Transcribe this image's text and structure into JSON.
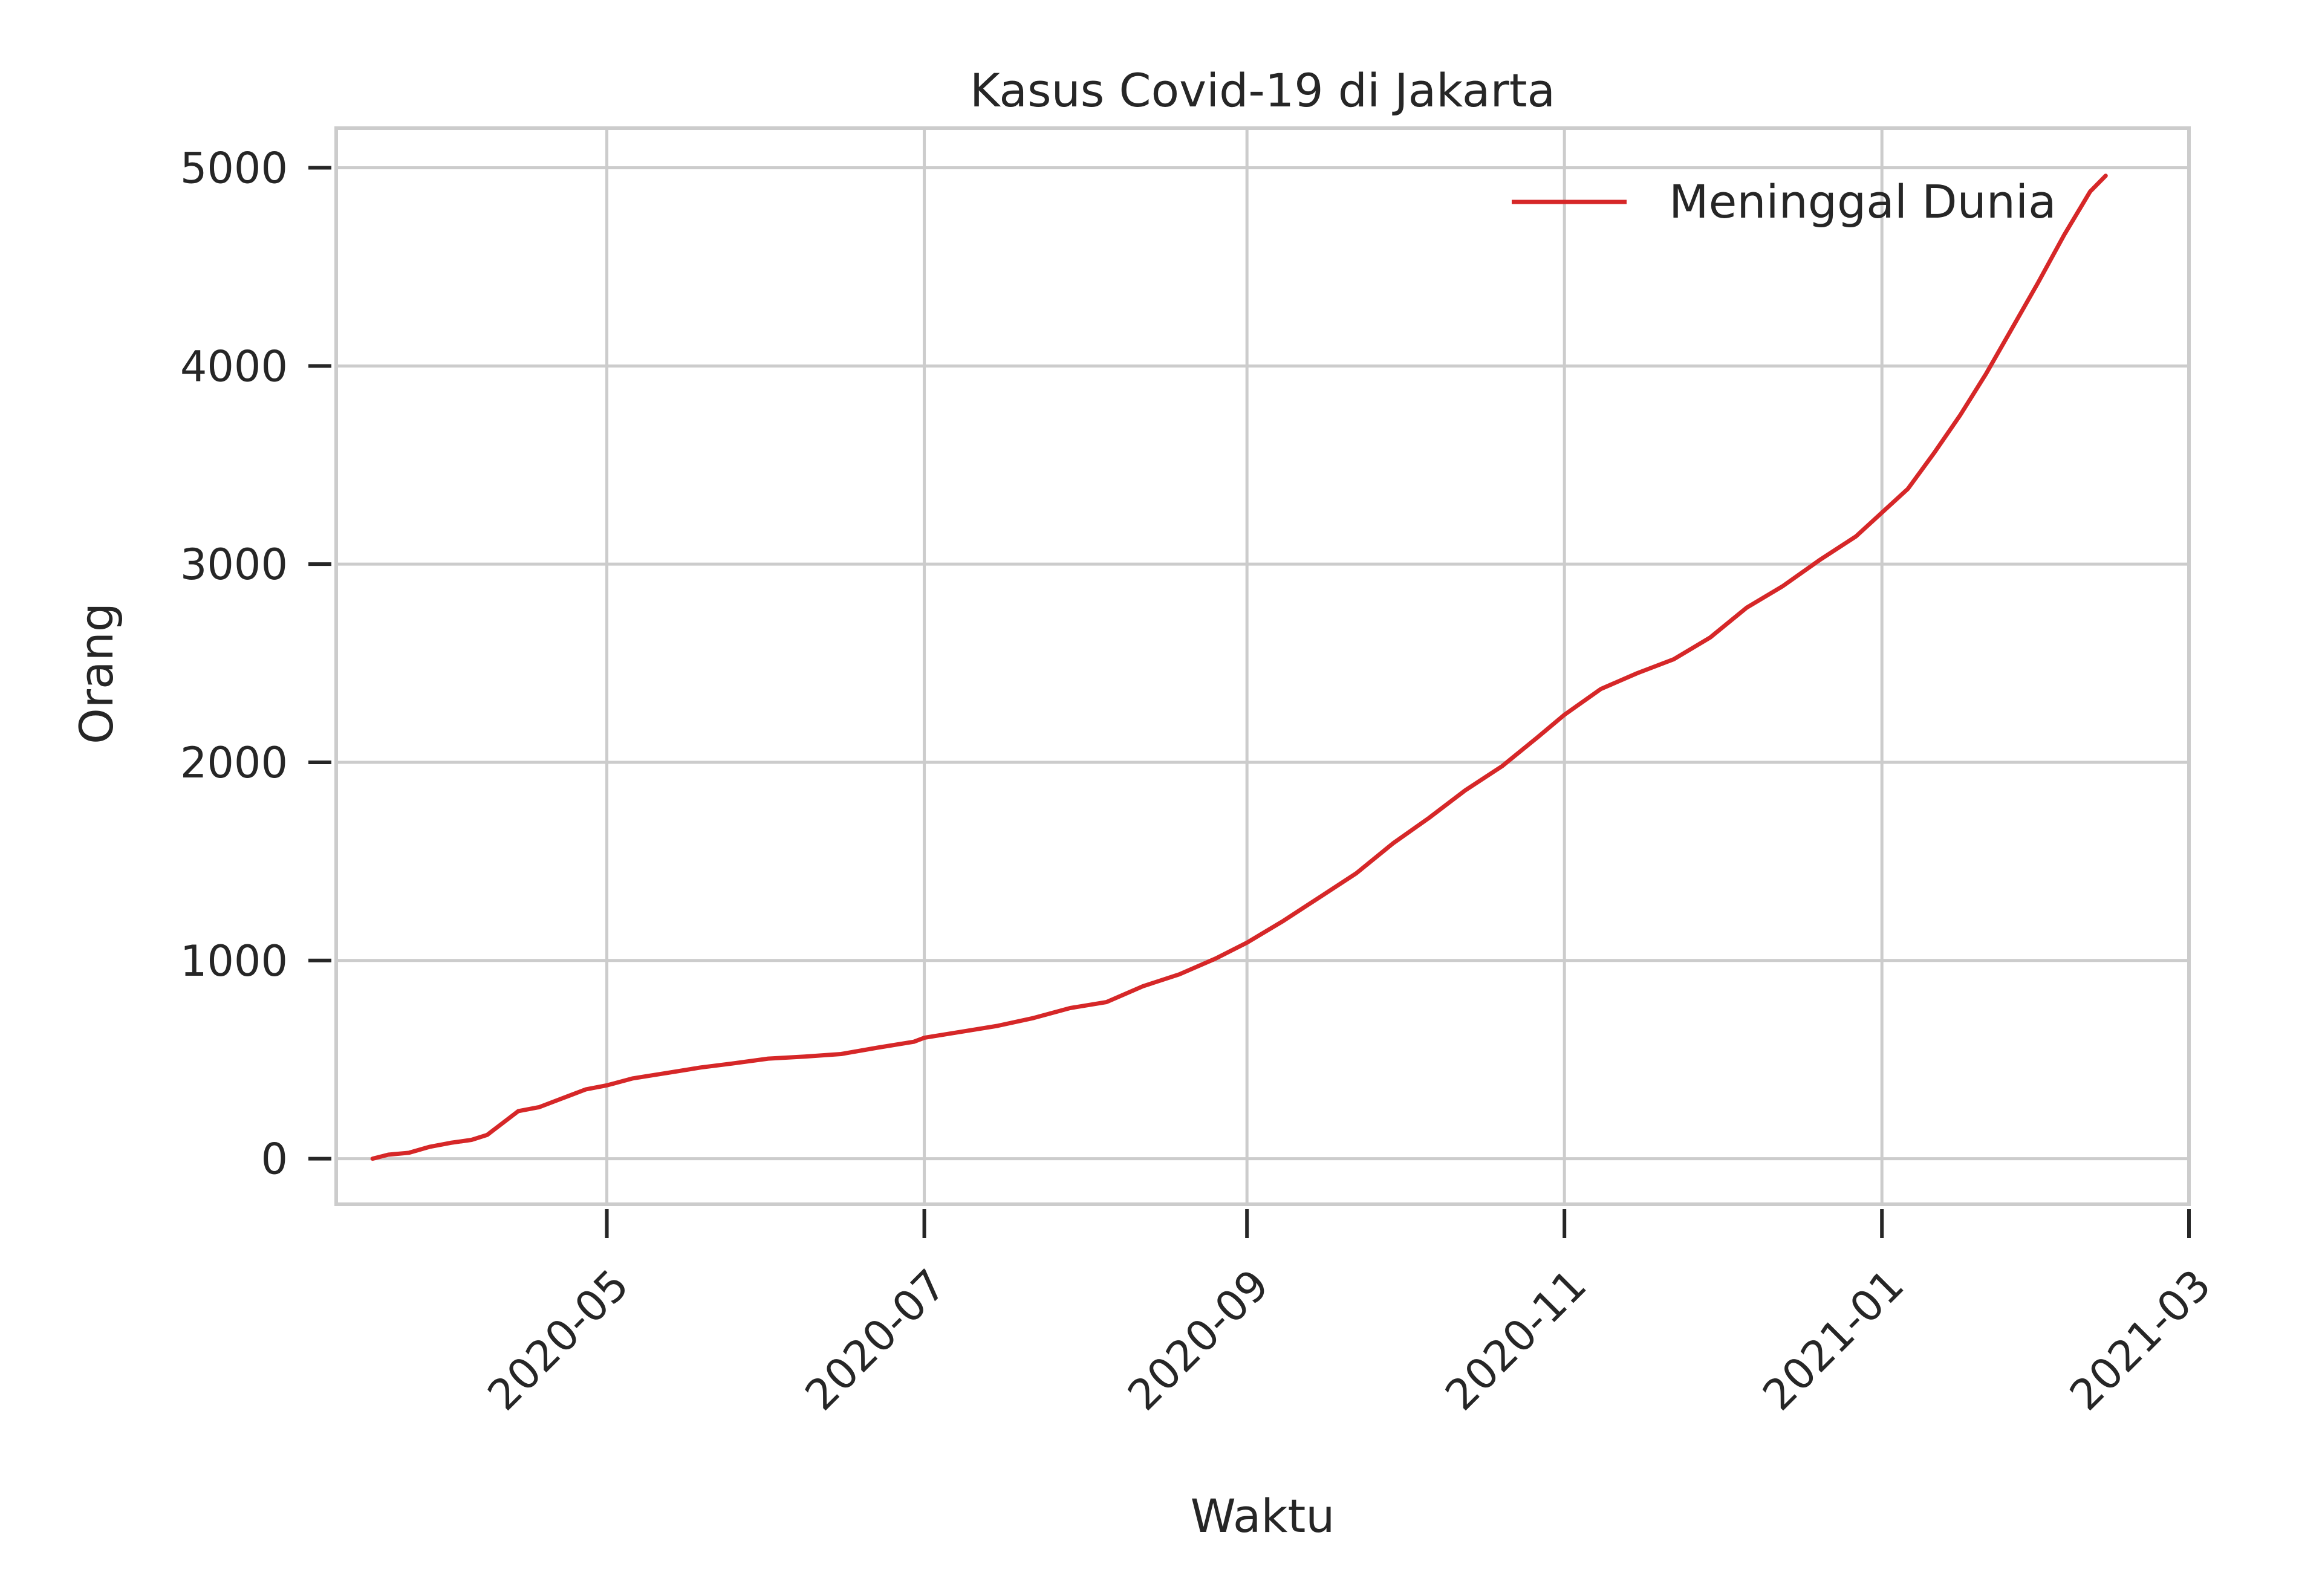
{
  "chart_data": {
    "type": "line",
    "title": "Kasus Covid-19 di Jakarta",
    "xlabel": "Waktu",
    "ylabel": "Orang",
    "x_tick_labels": [
      "2020-05",
      "2020-07",
      "2020-09",
      "2020-11",
      "2021-01",
      "2021-03"
    ],
    "x_ticks": [
      "2020-05-01",
      "2020-07-01",
      "2020-09-01",
      "2020-11-01",
      "2021-01-01",
      "2021-03-01"
    ],
    "y_tick_labels": [
      "0",
      "1000",
      "2000",
      "3000",
      "4000",
      "5000"
    ],
    "y_ticks": [
      0,
      1000,
      2000,
      3000,
      4000,
      5000
    ],
    "xlim": [
      "2020-03-10",
      "2021-03-01"
    ],
    "ylim": [
      -230,
      5200
    ],
    "grid": true,
    "legend_position": "upper right",
    "series": [
      {
        "name": "Meninggal Dunia",
        "color": "#d62728",
        "points": [
          [
            "2020-03-17",
            0
          ],
          [
            "2020-03-20",
            20
          ],
          [
            "2020-03-24",
            30
          ],
          [
            "2020-03-28",
            60
          ],
          [
            "2020-04-01",
            80
          ],
          [
            "2020-04-05",
            95
          ],
          [
            "2020-04-08",
            120
          ],
          [
            "2020-04-11",
            180
          ],
          [
            "2020-04-14",
            240
          ],
          [
            "2020-04-18",
            260
          ],
          [
            "2020-04-21",
            290
          ],
          [
            "2020-04-24",
            320
          ],
          [
            "2020-04-27",
            350
          ],
          [
            "2020-05-01",
            370
          ],
          [
            "2020-05-06",
            405
          ],
          [
            "2020-05-12",
            430
          ],
          [
            "2020-05-19",
            460
          ],
          [
            "2020-05-25",
            480
          ],
          [
            "2020-06-01",
            505
          ],
          [
            "2020-06-08",
            515
          ],
          [
            "2020-06-15",
            528
          ],
          [
            "2020-06-22",
            560
          ],
          [
            "2020-06-29",
            590
          ],
          [
            "2020-07-01",
            610
          ],
          [
            "2020-07-08",
            640
          ],
          [
            "2020-07-15",
            670
          ],
          [
            "2020-07-22",
            710
          ],
          [
            "2020-07-29",
            760
          ],
          [
            "2020-08-05",
            790
          ],
          [
            "2020-08-12",
            870
          ],
          [
            "2020-08-19",
            930
          ],
          [
            "2020-08-26",
            1010
          ],
          [
            "2020-09-01",
            1090
          ],
          [
            "2020-09-08",
            1200
          ],
          [
            "2020-09-15",
            1320
          ],
          [
            "2020-09-22",
            1440
          ],
          [
            "2020-09-29",
            1590
          ],
          [
            "2020-10-06",
            1720
          ],
          [
            "2020-10-13",
            1860
          ],
          [
            "2020-10-20",
            1980
          ],
          [
            "2020-10-27",
            2130
          ],
          [
            "2020-11-01",
            2240
          ],
          [
            "2020-11-08",
            2370
          ],
          [
            "2020-11-15",
            2450
          ],
          [
            "2020-11-22",
            2520
          ],
          [
            "2020-11-29",
            2630
          ],
          [
            "2020-12-06",
            2780
          ],
          [
            "2020-12-13",
            2890
          ],
          [
            "2020-12-20",
            3020
          ],
          [
            "2020-12-27",
            3140
          ],
          [
            "2021-01-01",
            3260
          ],
          [
            "2021-01-06",
            3380
          ],
          [
            "2021-01-11",
            3560
          ],
          [
            "2021-01-16",
            3750
          ],
          [
            "2021-01-21",
            3960
          ],
          [
            "2021-01-26",
            4190
          ],
          [
            "2021-01-31",
            4420
          ],
          [
            "2021-02-05",
            4660
          ],
          [
            "2021-02-10",
            4880
          ],
          [
            "2021-02-13",
            4960
          ]
        ]
      }
    ]
  }
}
